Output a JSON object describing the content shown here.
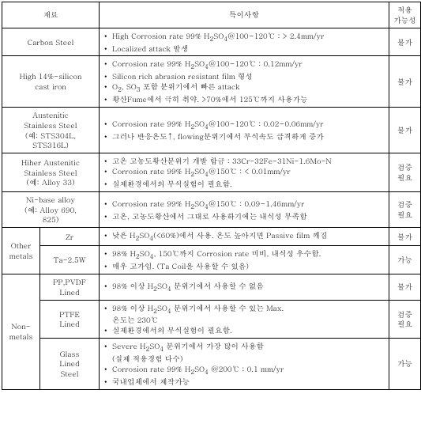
{
  "headers": {
    "material": "재료",
    "features": "특이사항",
    "applicability": "적용\n가능성"
  },
  "rows": [
    {
      "material": "Carbon Steel",
      "features": [
        "High Corrosion rate 99% H₂SO₄@100~120℃ :  > 2.4mm/yr",
        "Localized attack 발생"
      ],
      "apply": "불가"
    },
    {
      "material": "High 14%-silicon\ncast iron",
      "features": [
        "Corrosion rate 99% H₂SO₄@100~120℃ :  0.12mm/yr",
        "Silicon rich abrasion resistant film 형성",
        "O₂, SO₃ 포함 분위기에서 빠른 attack",
        "황산Fume에서 극히 취약. >70%에서 125℃까지 사용가능"
      ],
      "apply": "불가"
    },
    {
      "material": "Austenitic\nStainless Steel\n(예: STS304L,\nSTS316L)",
      "features": [
        "Corrosion rate 99% H₂SO₄@100~120℃ :  0.02~0.06mm/yr",
        "그러나 반응온도↑, flowing분위기에서 부식속도 급격하게 증가"
      ],
      "apply": "불가"
    },
    {
      "material": "Hiher Austenitic\nStainless Steel\n(예: Alloy 33)",
      "features": [
        "고온 고농도황산분위기 개발 합금 : 33Cr-32Fe-31Ni-1.6Mo-N",
        "Corrosion rate 99% H₂SO₄@150℃ :   < 0.01mm/yr",
        "실제환경에서의 부식실험이 필요함."
      ],
      "apply": "검증\n필요"
    },
    {
      "material": "Ni-base alloy\n(예: Alloy 690,\n825)",
      "features": [
        "Corrosion rate 99% H₂SO₄@150℃ :  0.09~1.46mm/yr",
        "고온, 고농도황산에서 그대로 사용하기에는 내식성 부족함"
      ],
      "apply": "검증\n필요"
    }
  ],
  "other_metals": {
    "label": "Other\nmetals",
    "rows": [
      {
        "sub": "Zr",
        "features": [
          "낮은 H₂SO₄(<60%)에서 사용. 온도 높아지면 Passive film 깨짐"
        ],
        "apply": "불가"
      },
      {
        "sub": "Ta-2.5W",
        "features": [
          "98% H₂SO₄, 150℃까지 Corrosion rate 미비, 내식성 우수함.",
          "매우 고가임. (Ta Coil을 사용할 수 있음)"
        ],
        "apply": "가능"
      }
    ]
  },
  "non_metals": {
    "label": "Non-\nmetals",
    "rows": [
      {
        "sub": "PP,PVDF\nLined",
        "features": [
          "98% 이상 H₂SO₄ 분위기에서 사용할 수 없음"
        ],
        "apply": "불가"
      },
      {
        "sub": "PTFE\nLined",
        "features": [
          "98% 이상 H₂SO₄ 분위기에서 사용할 수 있는 Max.\n온도는 230℃",
          "실제환경에서의 부식실험이 필요함."
        ],
        "apply": "검증\n필요"
      },
      {
        "sub": "Glass\nLined\nSteel",
        "features": [
          "Severe  H₂SO₄  분위기에서 가장 많이 사용함\n(실제 적용경험 다수)",
          "Corrosion rate 99% H₂SO₄  @200℃ : 0.1 mm/yr",
          "국내업체에서 제작가능"
        ],
        "apply": "가능"
      }
    ]
  }
}
